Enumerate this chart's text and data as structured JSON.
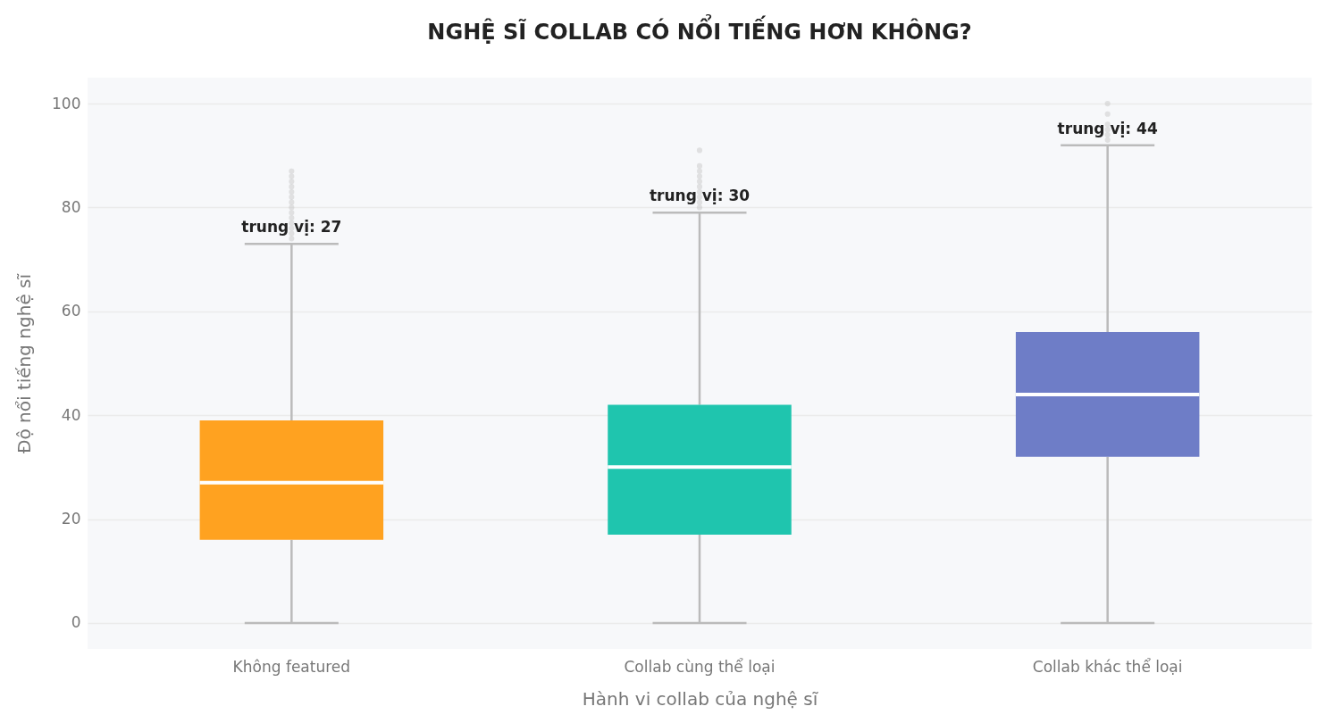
{
  "chart_data": {
    "type": "box",
    "title": "NGHỆ SĨ COLLAB CÓ NỔI TIẾNG HƠN KHÔNG?",
    "xlabel": "Hành vi collab của nghệ sĩ",
    "ylabel": "Độ nổi tiếng nghệ sĩ",
    "categories": [
      "Không featured",
      "Collab cùng thể loại",
      "Collab khác thể loại"
    ],
    "colors": [
      "#ffa220",
      "#1fc5ae",
      "#6e7dc7"
    ],
    "boxes": [
      {
        "low": 0,
        "q1": 16,
        "median": 27,
        "q3": 39,
        "high": 73,
        "outliers": [
          74,
          75,
          76,
          77,
          78,
          79,
          80,
          81,
          82,
          83,
          84,
          85,
          86,
          87
        ]
      },
      {
        "low": 0,
        "q1": 17,
        "median": 30,
        "q3": 42,
        "high": 79,
        "outliers": [
          80,
          81,
          82,
          83,
          84,
          85,
          86,
          87,
          88,
          91
        ]
      },
      {
        "low": 0,
        "q1": 32,
        "median": 44,
        "q3": 56,
        "high": 92,
        "outliers": [
          93,
          94,
          95,
          96,
          98,
          100
        ]
      }
    ],
    "ylim": [
      -5,
      105
    ],
    "yticks": [
      0,
      20,
      40,
      60,
      80,
      100
    ],
    "grid": "y",
    "annotations": [
      {
        "text": "trung vị: 27",
        "x": "Không featured",
        "y": 73
      },
      {
        "text": "trung vị: 30",
        "x": "Collab cùng thể loại",
        "y": 79
      },
      {
        "text": "trung vị: 44",
        "x": "Collab khác thể loại",
        "y": 92
      }
    ]
  }
}
